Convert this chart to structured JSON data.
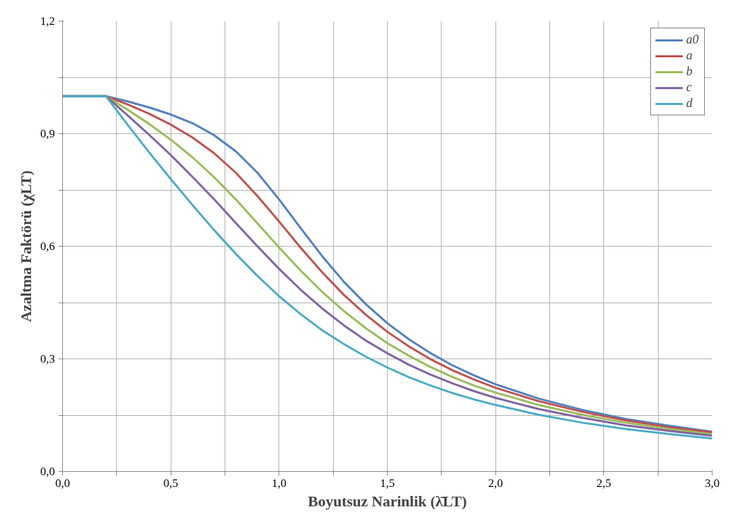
{
  "chart_data": {
    "type": "line",
    "xlabel": "Boyutsuz Narinlik (λ̄LT)",
    "ylabel": "Azaltma Faktörü (χLT)",
    "x": [
      0,
      0.2,
      0.3,
      0.4,
      0.5,
      0.6,
      0.7,
      0.8,
      0.9,
      1.0,
      1.1,
      1.2,
      1.3,
      1.4,
      1.5,
      1.6,
      1.7,
      1.8,
      1.9,
      2.0,
      2.2,
      2.4,
      2.6,
      2.8,
      3.0
    ],
    "series": [
      {
        "name": "a0",
        "color": "#4f81bd",
        "values": [
          1,
          1,
          0.986,
          0.97,
          0.951,
          0.928,
          0.896,
          0.853,
          0.796,
          0.725,
          0.648,
          0.573,
          0.505,
          0.446,
          0.395,
          0.352,
          0.315,
          0.283,
          0.256,
          0.232,
          0.194,
          0.164,
          0.14,
          0.122,
          0.106
        ]
      },
      {
        "name": "a",
        "color": "#c0504d",
        "values": [
          1,
          1,
          0.978,
          0.953,
          0.924,
          0.89,
          0.848,
          0.796,
          0.734,
          0.666,
          0.596,
          0.53,
          0.47,
          0.418,
          0.372,
          0.333,
          0.299,
          0.27,
          0.245,
          0.223,
          0.187,
          0.159,
          0.136,
          0.118,
          0.104
        ]
      },
      {
        "name": "b",
        "color": "#9bbb59",
        "values": [
          1,
          1,
          0.964,
          0.926,
          0.884,
          0.837,
          0.784,
          0.725,
          0.661,
          0.597,
          0.535,
          0.478,
          0.427,
          0.382,
          0.342,
          0.308,
          0.278,
          0.252,
          0.229,
          0.21,
          0.177,
          0.151,
          0.13,
          0.113,
          0.099
        ]
      },
      {
        "name": "c",
        "color": "#8064a2",
        "values": [
          1,
          1,
          0.949,
          0.897,
          0.843,
          0.785,
          0.725,
          0.662,
          0.6,
          0.54,
          0.484,
          0.434,
          0.389,
          0.349,
          0.315,
          0.284,
          0.258,
          0.235,
          0.214,
          0.196,
          0.166,
          0.143,
          0.123,
          0.108,
          0.095
        ]
      },
      {
        "name": "d",
        "color": "#4bacc6",
        "values": [
          1,
          1,
          0.924,
          0.85,
          0.779,
          0.71,
          0.643,
          0.58,
          0.521,
          0.467,
          0.419,
          0.376,
          0.339,
          0.306,
          0.277,
          0.251,
          0.229,
          0.209,
          0.192,
          0.177,
          0.151,
          0.13,
          0.113,
          0.1,
          0.088
        ]
      }
    ],
    "xlim": [
      0,
      3
    ],
    "ylim": [
      0,
      1.2
    ],
    "xticks": [
      {
        "value": 0,
        "label": "0,0"
      },
      {
        "value": 0.25,
        "label": null
      },
      {
        "value": 0.5,
        "label": "0,5"
      },
      {
        "value": 0.75,
        "label": null
      },
      {
        "value": 1,
        "label": "1,0"
      },
      {
        "value": 1.25,
        "label": null
      },
      {
        "value": 1.5,
        "label": "1,5"
      },
      {
        "value": 1.75,
        "label": null
      },
      {
        "value": 2,
        "label": "2,0"
      },
      {
        "value": 2.25,
        "label": null
      },
      {
        "value": 2.5,
        "label": "2,5"
      },
      {
        "value": 2.75,
        "label": null
      },
      {
        "value": 3,
        "label": "3,0"
      }
    ],
    "yticks": [
      {
        "value": 0,
        "label": "0,0"
      },
      {
        "value": 0.15,
        "label": null
      },
      {
        "value": 0.3,
        "label": "0,3"
      },
      {
        "value": 0.45,
        "label": null
      },
      {
        "value": 0.6,
        "label": "0,6"
      },
      {
        "value": 0.75,
        "label": null
      },
      {
        "value": 0.9,
        "label": "0,9"
      },
      {
        "value": 1.05,
        "label": null
      },
      {
        "value": 1.2,
        "label": "1,2"
      }
    ],
    "grid": true,
    "legend": "top right",
    "marker": "none",
    "line_style": "solid"
  }
}
